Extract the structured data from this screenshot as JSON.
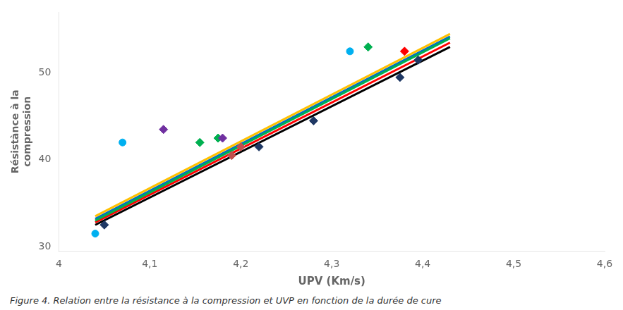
{
  "chart_data": {
    "type": "scatter",
    "xlabel": "UPV (Km/s)",
    "ylabel": "Résistànce à la\ncompression",
    "caption": "Figure 4. Relation entre la résistance à la compression et UVP en fonction de la durée de cure",
    "xlim": [
      4.0,
      4.6
    ],
    "ylim": [
      29.5,
      57
    ],
    "xticks": [
      4,
      {
        "value": 4.1,
        "label": "4,1"
      },
      {
        "value": 4.2,
        "label": "4,2"
      },
      {
        "value": 4.3,
        "label": "4,3"
      },
      {
        "value": 4.4,
        "label": "4,4"
      },
      {
        "value": 4.5,
        "label": "4,5"
      },
      {
        "value": 4.6,
        "label": "4,6"
      }
    ],
    "yticks": [
      30,
      40,
      50
    ],
    "grid": false,
    "series": [
      {
        "type": "line",
        "color": "#FFC000",
        "x": [
          4.04,
          4.43
        ],
        "values": [
          33.5,
          54.5
        ]
      },
      {
        "type": "line",
        "color": "#000000",
        "x": [
          4.04,
          4.43
        ],
        "values": [
          32.5,
          53.0
        ]
      },
      {
        "type": "line",
        "color": "#00B050",
        "x": [
          4.04,
          4.43
        ],
        "values": [
          33.0,
          54.0
        ]
      },
      {
        "type": "line",
        "color": "#0070C0",
        "x": [
          4.04,
          4.43
        ],
        "values": [
          33.2,
          54.2
        ]
      },
      {
        "type": "line",
        "color": "#FF0000",
        "x": [
          4.04,
          4.43
        ],
        "values": [
          32.8,
          53.5
        ]
      },
      {
        "type": "scatter",
        "color": "#00B0F0",
        "marker": "circle",
        "x": [
          4.04,
          4.07,
          4.32
        ],
        "values": [
          31.5,
          42.0,
          52.5
        ]
      },
      {
        "type": "scatter",
        "color": "#1F3864",
        "marker": "diamond",
        "x": [
          4.05,
          4.22,
          4.28,
          4.375,
          4.395
        ],
        "values": [
          32.5,
          41.5,
          44.5,
          49.5,
          51.5
        ]
      },
      {
        "type": "scatter",
        "color": "#7030A0",
        "marker": "diamond",
        "x": [
          4.115,
          4.18
        ],
        "values": [
          43.5,
          42.5
        ]
      },
      {
        "type": "scatter",
        "color": "#FF0000",
        "marker": "diamond",
        "x": [
          4.38
        ],
        "values": [
          52.5
        ]
      },
      {
        "type": "scatter",
        "color": "#C0504D",
        "marker": "diamond",
        "x": [
          4.19,
          4.2
        ],
        "values": [
          40.5,
          41.5
        ]
      },
      {
        "type": "scatter",
        "color": "#00B050",
        "marker": "diamond",
        "x": [
          4.155,
          4.175,
          4.34
        ],
        "values": [
          42.0,
          42.5,
          53.0
        ]
      }
    ]
  }
}
